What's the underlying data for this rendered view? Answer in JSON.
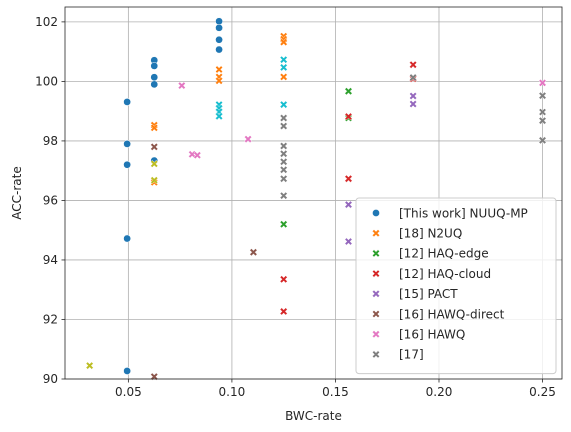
{
  "chart_data": {
    "type": "scatter",
    "xlabel": "BWC-rate",
    "ylabel": "ACC-rate",
    "xlim": [
      0.0194,
      0.2594
    ],
    "ylim": [
      90,
      102.5
    ],
    "xticks": [
      0.05,
      0.1,
      0.15,
      0.2,
      0.25
    ],
    "xtick_labels": [
      "0.05",
      "0.10",
      "0.15",
      "0.20",
      "0.25"
    ],
    "yticks": [
      90,
      92,
      94,
      96,
      98,
      100,
      102
    ],
    "ytick_labels": [
      "90",
      "92",
      "94",
      "96",
      "98",
      "100",
      "102"
    ],
    "grid": true,
    "legend_position": "lower right",
    "series": [
      {
        "name": "[This work] NUUQ-MP",
        "marker": "circle",
        "color": "#1f77b4",
        "points": [
          [
            0.0494,
            99.31
          ],
          [
            0.0494,
            97.9
          ],
          [
            0.0494,
            97.2
          ],
          [
            0.0494,
            94.72
          ],
          [
            0.0494,
            90.27
          ],
          [
            0.0625,
            100.71
          ],
          [
            0.0625,
            100.52
          ],
          [
            0.0625,
            100.14
          ],
          [
            0.0625,
            99.9
          ],
          [
            0.0625,
            97.34
          ],
          [
            0.0938,
            102.02
          ],
          [
            0.0938,
            101.8
          ],
          [
            0.0938,
            101.4
          ],
          [
            0.0938,
            101.07
          ]
        ]
      },
      {
        "name": "[18] N2UQ",
        "marker": "x",
        "color": "#ff7f0e",
        "points": [
          [
            0.0625,
            98.53
          ],
          [
            0.0625,
            98.44
          ],
          [
            0.0625,
            96.61
          ],
          [
            0.0938,
            100.4
          ],
          [
            0.0938,
            100.15
          ],
          [
            0.0938,
            100.02
          ],
          [
            0.125,
            101.52
          ],
          [
            0.125,
            101.42
          ],
          [
            0.125,
            101.32
          ],
          [
            0.125,
            100.15
          ]
        ]
      },
      {
        "name": "[12] HAQ-edge",
        "marker": "x",
        "color": "#2ca02c",
        "points": [
          [
            0.125,
            95.2
          ],
          [
            0.1563,
            99.67
          ],
          [
            0.1563,
            98.77
          ]
        ]
      },
      {
        "name": "[12] HAQ-cloud",
        "marker": "x",
        "color": "#d62728",
        "points": [
          [
            0.125,
            93.35
          ],
          [
            0.125,
            92.27
          ],
          [
            0.1563,
            98.82
          ],
          [
            0.1563,
            96.73
          ],
          [
            0.1875,
            100.56
          ],
          [
            0.1875,
            100.09
          ]
        ]
      },
      {
        "name": "[15] PACT",
        "marker": "x",
        "color": "#9467bd",
        "points": [
          [
            0.1563,
            95.86
          ],
          [
            0.1563,
            94.62
          ],
          [
            0.1875,
            99.51
          ],
          [
            0.1875,
            99.24
          ]
        ]
      },
      {
        "name": "[16] HAWQ-direct",
        "marker": "x",
        "color": "#8c564b",
        "points": [
          [
            0.0625,
            97.8
          ],
          [
            0.0625,
            90.08
          ],
          [
            0.1104,
            94.26
          ]
        ]
      },
      {
        "name": "[16] HAWQ",
        "marker": "x",
        "color": "#e377c2",
        "points": [
          [
            0.0758,
            99.86
          ],
          [
            0.0808,
            97.55
          ],
          [
            0.0833,
            97.52
          ],
          [
            0.1078,
            98.06
          ],
          [
            0.25,
            99.95
          ]
        ]
      },
      {
        "name": "[17]",
        "marker": "x",
        "color": "#7f7f7f",
        "points": [
          [
            0.125,
            98.77
          ],
          [
            0.125,
            98.5
          ],
          [
            0.125,
            97.83
          ],
          [
            0.125,
            97.57
          ],
          [
            0.125,
            97.3
          ],
          [
            0.125,
            97.03
          ],
          [
            0.125,
            96.73
          ],
          [
            0.125,
            96.16
          ],
          [
            0.1875,
            100.13
          ],
          [
            0.25,
            99.52
          ],
          [
            0.25,
            98.97
          ],
          [
            0.25,
            98.68
          ],
          [
            0.25,
            98.02
          ]
        ]
      },
      {
        "name": "",
        "marker": "x",
        "color": "#bcbd22",
        "points": [
          [
            0.0313,
            90.45
          ],
          [
            0.0625,
            97.23
          ],
          [
            0.0625,
            96.68
          ]
        ]
      },
      {
        "name": "",
        "marker": "x",
        "color": "#17becf",
        "points": [
          [
            0.0938,
            99.22
          ],
          [
            0.0938,
            99.1
          ],
          [
            0.0938,
            98.98
          ],
          [
            0.0938,
            98.83
          ],
          [
            0.125,
            100.73
          ],
          [
            0.125,
            100.47
          ],
          [
            0.125,
            99.22
          ]
        ]
      }
    ]
  }
}
